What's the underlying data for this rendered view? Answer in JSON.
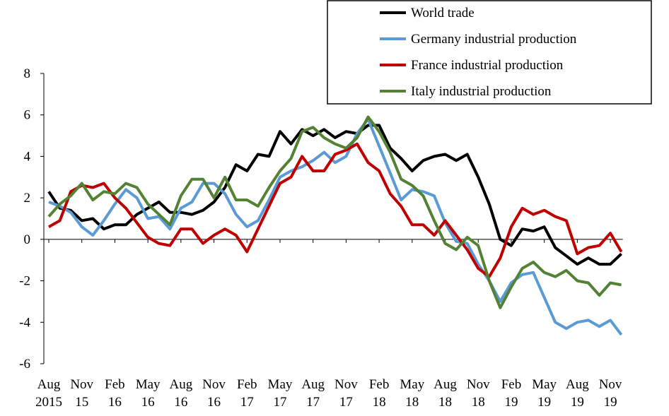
{
  "chart_data": {
    "type": "line",
    "title": "",
    "xlabel": "",
    "ylabel": "",
    "ylim": [
      -6,
      8
    ],
    "yticks": [
      -6,
      -4,
      -2,
      0,
      2,
      4,
      6,
      8
    ],
    "grid": false,
    "legend_position": "top-right",
    "x_tick_labels": [
      {
        "month": "Aug",
        "year": "2015"
      },
      {
        "month": "Nov",
        "year": "15"
      },
      {
        "month": "Feb",
        "year": "16"
      },
      {
        "month": "May",
        "year": "16"
      },
      {
        "month": "Aug",
        "year": "16"
      },
      {
        "month": "Nov",
        "year": "16"
      },
      {
        "month": "Feb",
        "year": "17"
      },
      {
        "month": "May",
        "year": "17"
      },
      {
        "month": "Aug",
        "year": "17"
      },
      {
        "month": "Nov",
        "year": "17"
      },
      {
        "month": "Feb",
        "year": "18"
      },
      {
        "month": "May",
        "year": "18"
      },
      {
        "month": "Aug",
        "year": "18"
      },
      {
        "month": "Nov",
        "year": "18"
      },
      {
        "month": "Feb",
        "year": "19"
      },
      {
        "month": "May",
        "year": "19"
      },
      {
        "month": "Aug",
        "year": "19"
      },
      {
        "month": "Nov",
        "year": "19"
      }
    ],
    "x_dates": [
      "2015-08",
      "2015-09",
      "2015-10",
      "2015-11",
      "2015-12",
      "2016-01",
      "2016-02",
      "2016-03",
      "2016-04",
      "2016-05",
      "2016-06",
      "2016-07",
      "2016-08",
      "2016-09",
      "2016-10",
      "2016-11",
      "2016-12",
      "2017-01",
      "2017-02",
      "2017-03",
      "2017-04",
      "2017-05",
      "2017-06",
      "2017-07",
      "2017-08",
      "2017-09",
      "2017-10",
      "2017-11",
      "2017-12",
      "2018-01",
      "2018-02",
      "2018-03",
      "2018-04",
      "2018-05",
      "2018-06",
      "2018-07",
      "2018-08",
      "2018-09",
      "2018-10",
      "2018-11",
      "2018-12",
      "2019-01",
      "2019-02",
      "2019-03",
      "2019-04",
      "2019-05",
      "2019-06",
      "2019-07",
      "2019-08",
      "2019-09",
      "2019-10",
      "2019-11",
      "2019-12"
    ],
    "series": [
      {
        "name": "World trade",
        "color": "#000000",
        "values": [
          2.3,
          1.5,
          1.4,
          0.9,
          1.0,
          0.5,
          0.7,
          0.7,
          1.2,
          1.5,
          1.8,
          1.3,
          1.3,
          1.2,
          1.4,
          1.8,
          2.5,
          3.6,
          3.3,
          4.1,
          4.0,
          5.2,
          4.6,
          5.3,
          5.0,
          5.3,
          4.9,
          5.2,
          5.1,
          5.5,
          5.5,
          4.4,
          3.9,
          3.3,
          3.8,
          4.0,
          4.1,
          3.8,
          4.1,
          3.0,
          1.7,
          0.0,
          -0.3,
          0.5,
          0.4,
          0.6,
          -0.4,
          -0.8,
          -1.2,
          -0.9,
          -1.2,
          -1.2,
          -0.7
        ]
      },
      {
        "name": "Germany industrial production",
        "color": "#5b9bd5",
        "values": [
          1.8,
          1.6,
          1.3,
          0.6,
          0.2,
          0.9,
          1.7,
          2.4,
          2.0,
          1.0,
          1.1,
          0.5,
          1.5,
          1.8,
          2.7,
          2.7,
          2.2,
          1.2,
          0.6,
          0.9,
          1.9,
          3.0,
          3.3,
          3.5,
          3.8,
          4.2,
          3.7,
          4.0,
          5.1,
          5.8,
          4.5,
          3.2,
          1.9,
          2.4,
          2.3,
          2.1,
          0.8,
          -0.1,
          -0.2,
          -1.2,
          -2.0,
          -3.0,
          -2.1,
          -1.7,
          -1.6,
          -2.8,
          -4.0,
          -4.3,
          -4.0,
          -3.9,
          -4.2,
          -3.9,
          -4.6
        ]
      },
      {
        "name": "France industrial production",
        "color": "#c00000",
        "values": [
          0.6,
          0.9,
          2.3,
          2.6,
          2.5,
          2.7,
          2.0,
          1.5,
          0.8,
          0.1,
          -0.2,
          -0.3,
          0.5,
          0.5,
          -0.2,
          0.2,
          0.5,
          0.2,
          -0.6,
          0.5,
          1.6,
          2.7,
          3.0,
          4.0,
          3.3,
          3.3,
          4.1,
          4.3,
          4.6,
          3.7,
          3.3,
          2.2,
          1.6,
          0.7,
          0.7,
          0.2,
          0.9,
          0.2,
          -0.5,
          -1.4,
          -1.8,
          -0.9,
          0.6,
          1.5,
          1.2,
          1.4,
          1.1,
          0.9,
          -0.7,
          -0.4,
          -0.3,
          0.3,
          -0.6
        ]
      },
      {
        "name": "Italy industrial production",
        "color": "#548235",
        "values": [
          1.1,
          1.7,
          2.1,
          2.7,
          1.9,
          2.3,
          2.2,
          2.7,
          2.5,
          1.7,
          1.2,
          0.7,
          2.1,
          2.9,
          2.9,
          2.0,
          3.0,
          1.9,
          1.9,
          1.6,
          2.5,
          3.3,
          3.9,
          5.2,
          5.4,
          4.9,
          4.6,
          4.4,
          4.9,
          5.9,
          5.2,
          4.2,
          2.9,
          2.6,
          2.1,
          0.9,
          -0.2,
          -0.5,
          0.1,
          -0.3,
          -2.0,
          -3.3,
          -2.3,
          -1.4,
          -1.1,
          -1.6,
          -1.8,
          -1.5,
          -2.0,
          -2.1,
          -2.7,
          -2.1,
          -2.2
        ]
      }
    ]
  }
}
